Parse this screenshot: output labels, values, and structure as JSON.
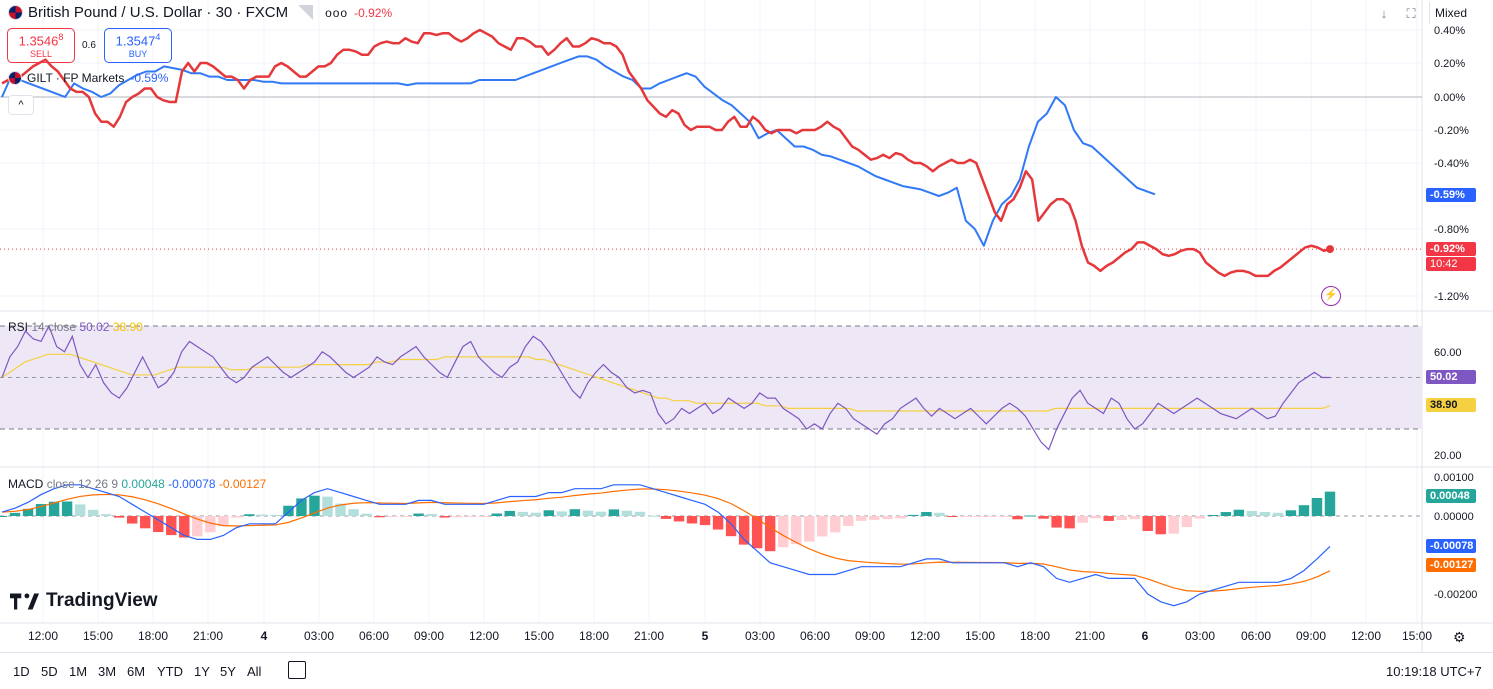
{
  "header": {
    "symbol_title": "British Pound / U.S. Dollar · 30 · FXCM",
    "symbol_change": "-0.92%",
    "sell_price_main": "1.3546",
    "sell_price_sup": "8",
    "sell_label": "SELL",
    "buy_price_main": "1.3547",
    "buy_price_sup": "4",
    "buy_label": "BUY",
    "spread": "0.6",
    "compare_title": "GILT · FP Markets",
    "compare_change": "-0.59%",
    "more_menu": "ooo",
    "collapse_label": "^",
    "scale_mode": "Mixed"
  },
  "colors": {
    "main_series": "#e5383b",
    "compare_series": "#3179f5",
    "rsi_line": "#7e57c2",
    "rsi_ma": "#f5d142",
    "macd_line": "#2962ff",
    "signal_line": "#ff6d00",
    "hist_up_strong": "#26a69a",
    "hist_up_weak": "#b2dfdb",
    "hist_down_strong": "#ff5252",
    "hist_down_weak": "#ffcdd2",
    "rsi_band": "#ede7f6"
  },
  "price_axis": {
    "ticks": [
      "0.40%",
      "0.20%",
      "0.00%",
      "-0.20%",
      "-0.40%",
      "-0.80%",
      "-1.20%"
    ],
    "tick_values": [
      0.4,
      0.2,
      0.0,
      -0.2,
      -0.4,
      -0.8,
      -1.2
    ],
    "compare_tag": "-0.59%",
    "main_tag": "-0.92%",
    "countdown": "10:42"
  },
  "rsi": {
    "label_name": "RSI",
    "label_params": "14 close",
    "value": "50.02",
    "ma_value": "38.90",
    "ticks": [
      "60.00",
      "20.00"
    ],
    "tick_values": [
      60,
      20
    ],
    "upper_band": 70,
    "lower_band": 30
  },
  "macd": {
    "label_name": "MACD",
    "label_params": "close 12 26 9",
    "hist_value": "0.00048",
    "macd_value": "-0.00078",
    "signal_value": "-0.00127",
    "ticks": [
      "0.00100",
      "0.00000",
      "-0.00200"
    ],
    "tick_values": [
      0.001,
      0.0,
      -0.002
    ]
  },
  "time_axis": {
    "labels": [
      "12:00",
      "15:00",
      "18:00",
      "21:00",
      "4",
      "03:00",
      "06:00",
      "09:00",
      "12:00",
      "15:00",
      "18:00",
      "21:00",
      "5",
      "03:00",
      "06:00",
      "09:00",
      "12:00",
      "15:00",
      "18:00",
      "21:00",
      "6",
      "03:00",
      "06:00",
      "09:00",
      "12:00",
      "15:00"
    ]
  },
  "chart_data": {
    "type": "line",
    "x_unit": "30-minute bars",
    "series": [
      {
        "name": "British Pound / U.S. Dollar · 30 · FXCM",
        "values": [
          0.08,
          0.1,
          0.12,
          0.12,
          0.15,
          0.18,
          0.2,
          0.22,
          0.18,
          0.15,
          0.1,
          0.05,
          0.03,
          0.03,
          0.0,
          -0.1,
          -0.15,
          -0.15,
          -0.18,
          -0.12,
          -0.03,
          0.0,
          0.02,
          0.05,
          0.05,
          0.0,
          -0.02,
          -0.03,
          -0.03,
          0.15,
          0.2,
          0.15,
          0.2,
          0.2,
          0.18,
          0.15,
          0.12,
          0.12,
          0.1,
          0.05,
          0.1,
          0.12,
          0.12,
          0.12,
          0.18,
          0.2,
          0.18,
          0.15,
          0.12,
          0.12,
          0.15,
          0.18,
          0.18,
          0.2,
          0.25,
          0.28,
          0.28,
          0.27,
          0.25,
          0.25,
          0.3,
          0.32,
          0.33,
          0.32,
          0.32,
          0.35,
          0.33,
          0.32,
          0.38,
          0.38,
          0.37,
          0.38,
          0.38,
          0.35,
          0.33,
          0.35,
          0.38,
          0.4,
          0.38,
          0.36,
          0.32,
          0.3,
          0.28,
          0.35,
          0.35,
          0.33,
          0.3,
          0.3,
          0.25,
          0.28,
          0.32,
          0.35,
          0.3,
          0.3,
          0.32,
          0.35,
          0.34,
          0.32,
          0.32,
          0.3,
          0.25,
          0.15,
          0.1,
          0.05,
          -0.02,
          -0.06,
          -0.1,
          -0.12,
          -0.08,
          -0.1,
          -0.17,
          -0.2,
          -0.18,
          -0.18,
          -0.18,
          -0.2,
          -0.2,
          -0.15,
          -0.12,
          -0.18,
          -0.18,
          -0.12,
          -0.15,
          -0.2,
          -0.22,
          -0.2,
          -0.2,
          -0.2,
          -0.22,
          -0.2,
          -0.2,
          -0.2,
          -0.18,
          -0.15,
          -0.18,
          -0.2,
          -0.25,
          -0.3,
          -0.32,
          -0.35,
          -0.38,
          -0.37,
          -0.35,
          -0.37,
          -0.34,
          -0.35,
          -0.38,
          -0.4,
          -0.4,
          -0.42,
          -0.45,
          -0.42,
          -0.4,
          -0.38,
          -0.4,
          -0.4,
          -0.38,
          -0.4,
          -0.5,
          -0.6,
          -0.7,
          -0.75,
          -0.65,
          -0.62,
          -0.55,
          -0.45,
          -0.5,
          -0.75,
          -0.7,
          -0.65,
          -0.62,
          -0.62,
          -0.65,
          -0.75,
          -0.9,
          -1.0,
          -1.02,
          -1.05,
          -1.02,
          -1.0,
          -0.97,
          -0.94,
          -0.92,
          -0.88,
          -0.88,
          -0.9,
          -0.92,
          -0.95,
          -0.96,
          -0.95,
          -0.93,
          -0.92,
          -0.92,
          -0.94,
          -1.0,
          -1.03,
          -1.06,
          -1.08,
          -1.06,
          -1.05,
          -1.05,
          -1.06,
          -1.08,
          -1.08,
          -1.08,
          -1.05,
          -1.03,
          -1.0,
          -0.97,
          -0.94,
          -0.91,
          -0.9,
          -0.91,
          -0.93,
          -0.92
        ]
      },
      {
        "name": "GILT · FP Markets",
        "values": [
          0.0,
          0.12,
          0.1,
          0.08,
          0.06,
          0.04,
          0.02,
          0.0,
          0.08,
          0.05,
          0.03,
          0.0,
          0.02,
          0.07,
          0.1,
          0.13,
          0.15,
          0.15,
          0.18,
          0.17,
          0.16,
          0.14,
          0.14,
          0.12,
          0.12,
          0.1,
          0.1,
          0.1,
          0.1,
          0.09,
          0.09,
          0.08,
          0.08,
          0.08,
          0.08,
          0.08,
          0.08,
          0.08,
          0.08,
          0.08,
          0.08,
          0.08,
          0.08,
          0.08,
          0.08,
          0.07,
          0.08,
          0.08,
          0.08,
          0.08,
          0.08,
          0.08,
          0.08,
          0.1,
          0.1,
          0.1,
          0.1,
          0.1,
          0.12,
          0.14,
          0.16,
          0.18,
          0.2,
          0.22,
          0.24,
          0.24,
          0.22,
          0.18,
          0.15,
          0.12,
          0.1,
          0.05,
          0.05,
          0.08,
          0.1,
          0.12,
          0.14,
          0.12,
          0.06,
          0.02,
          -0.02,
          -0.05,
          -0.1,
          -0.15,
          -0.25,
          -0.22,
          -0.2,
          -0.25,
          -0.3,
          -0.3,
          -0.32,
          -0.35,
          -0.36,
          -0.38,
          -0.4,
          -0.42,
          -0.45,
          -0.48,
          -0.5,
          -0.52,
          -0.54,
          -0.55,
          -0.56,
          -0.58,
          -0.6,
          -0.58,
          -0.55,
          -0.75,
          -0.8,
          -0.9,
          -0.75,
          -0.65,
          -0.6,
          -0.5,
          -0.3,
          -0.15,
          -0.1,
          0.0,
          -0.05,
          -0.2,
          -0.28,
          -0.3,
          -0.35,
          -0.4,
          -0.45,
          -0.5,
          -0.55,
          -0.57,
          -0.59
        ]
      }
    ],
    "rsi_values": [
      50,
      58,
      62,
      68,
      65,
      64,
      70,
      62,
      60,
      66,
      55,
      50,
      55,
      48,
      44,
      42,
      46,
      52,
      58,
      52,
      46,
      48,
      52,
      60,
      64,
      62,
      60,
      58,
      54,
      50,
      48,
      50,
      54,
      56,
      58,
      55,
      52,
      50,
      52,
      54,
      56,
      60,
      58,
      55,
      52,
      50,
      52,
      54,
      58,
      56,
      55,
      58,
      60,
      62,
      58,
      55,
      52,
      50,
      56,
      62,
      64,
      58,
      55,
      52,
      50,
      54,
      56,
      62,
      66,
      64,
      60,
      55,
      50,
      45,
      42,
      48,
      52,
      55,
      52,
      50,
      46,
      44,
      45,
      44,
      36,
      32,
      34,
      38,
      36,
      38,
      40,
      36,
      38,
      42,
      40,
      38,
      40,
      44,
      42,
      42,
      38,
      36,
      34,
      30,
      32,
      30,
      36,
      40,
      38,
      34,
      32,
      30,
      28,
      32,
      34,
      38,
      40,
      42,
      38,
      35,
      38,
      36,
      34,
      36,
      38,
      35,
      32,
      35,
      38,
      40,
      38,
      35,
      30,
      25,
      22,
      30,
      36,
      42,
      45,
      40,
      38,
      36,
      42,
      40,
      34,
      30,
      32,
      36,
      40,
      38,
      36,
      38,
      40,
      42,
      40,
      38,
      36,
      35,
      34,
      36,
      38,
      36,
      34,
      35,
      40,
      44,
      48,
      50,
      52,
      50,
      50
    ],
    "rsi_ma_values": [
      50,
      52,
      54,
      56,
      57,
      58,
      59,
      59,
      59,
      59,
      58,
      57,
      56,
      55,
      54,
      53,
      52,
      51,
      51,
      51,
      51,
      52,
      53,
      54,
      54,
      54,
      54,
      54,
      54,
      54,
      53,
      53,
      53,
      54,
      54,
      54,
      54,
      54,
      54,
      54,
      55,
      55,
      55,
      55,
      55,
      55,
      55,
      55,
      55,
      56,
      56,
      56,
      57,
      57,
      57,
      57,
      57,
      57,
      58,
      58,
      58,
      58,
      58,
      58,
      58,
      58,
      58,
      58,
      58,
      58,
      57,
      57,
      56,
      55,
      54,
      53,
      52,
      51,
      50,
      49,
      48,
      47,
      46,
      45,
      44,
      43,
      42,
      42,
      41,
      41,
      41,
      40,
      40,
      40,
      40,
      40,
      40,
      40,
      40,
      40,
      39,
      39,
      39,
      38,
      38,
      38,
      38,
      38,
      38,
      38,
      38,
      38,
      37,
      37,
      37,
      37,
      37,
      37,
      37,
      37,
      37,
      37,
      37,
      37,
      37,
      37,
      37,
      37,
      37,
      37,
      37,
      37,
      37,
      37,
      37,
      37,
      37,
      37,
      38,
      38,
      38,
      38,
      38,
      38,
      38,
      38,
      38,
      38,
      38,
      38,
      38,
      38,
      38,
      38,
      38,
      38,
      38,
      38,
      38,
      38,
      38,
      38,
      38,
      38,
      38,
      38,
      38,
      38,
      38,
      38,
      38,
      38,
      38,
      38,
      39
    ],
    "macd_values": [
      0.0001,
      0.0002,
      0.00035,
      0.00055,
      0.0007,
      0.0008,
      0.0008,
      0.0007,
      0.0006,
      0.0005,
      0.0003,
      0.0001,
      -0.0001,
      -0.0003,
      -0.0005,
      -0.0006,
      -0.0006,
      -0.0005,
      -0.0003,
      -0.0002,
      -0.0002,
      -0.0002,
      0.0001,
      0.0004,
      0.0006,
      0.0007,
      0.0006,
      0.0005,
      0.0004,
      0.0003,
      0.0003,
      0.0003,
      0.0004,
      0.0004,
      0.0003,
      0.0003,
      0.0003,
      0.0003,
      0.0004,
      0.0005,
      0.0005,
      0.0005,
      0.0006,
      0.0006,
      0.0007,
      0.0007,
      0.0007,
      0.0008,
      0.0008,
      0.0008,
      0.0007,
      0.0006,
      0.0005,
      0.0004,
      0.0003,
      0.0001,
      -0.0002,
      -0.0006,
      -0.0009,
      -0.0012,
      -0.0013,
      -0.0014,
      -0.0015,
      -0.0015,
      -0.0015,
      -0.0014,
      -0.0013,
      -0.0013,
      -0.0013,
      -0.0013,
      -0.0012,
      -0.0011,
      -0.0011,
      -0.0012,
      -0.0012,
      -0.0012,
      -0.0012,
      -0.0012,
      -0.0013,
      -0.0012,
      -0.0013,
      -0.0016,
      -0.0017,
      -0.0016,
      -0.0015,
      -0.0016,
      -0.0016,
      -0.0016,
      -0.002,
      -0.0022,
      -0.0023,
      -0.0022,
      -0.002,
      -0.0019,
      -0.0018,
      -0.0017,
      -0.0017,
      -0.0017,
      -0.0017,
      -0.0016,
      -0.0014,
      -0.0011,
      -0.00078
    ]
  }
}
